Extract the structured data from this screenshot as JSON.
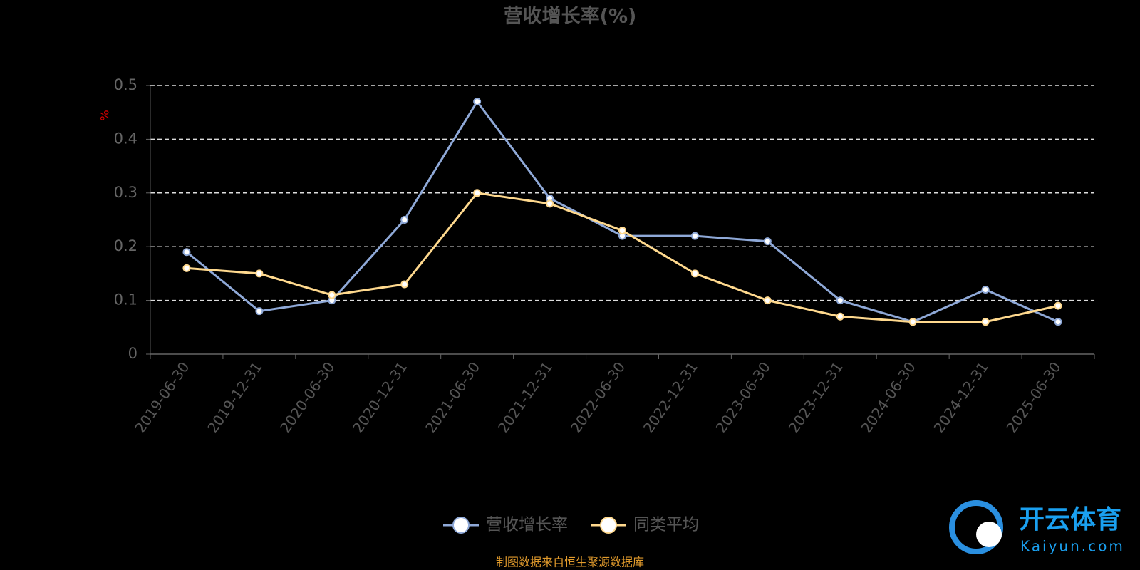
{
  "chart_data": {
    "type": "line",
    "title": "营收增长率(%)",
    "y_label": "%",
    "categories": [
      "2019-06-30",
      "2019-12-31",
      "2020-06-30",
      "2020-12-31",
      "2021-06-30",
      "2021-12-31",
      "2022-06-30",
      "2022-12-31",
      "2023-06-30",
      "2023-12-31",
      "2024-06-30",
      "2024-12-31",
      "2025-06-30"
    ],
    "series": [
      {
        "name": "营收增长率",
        "color": "#8fa9d8",
        "values": [
          0.19,
          0.08,
          0.1,
          0.25,
          0.47,
          0.29,
          0.22,
          0.22,
          0.21,
          0.1,
          0.06,
          0.12,
          0.06
        ]
      },
      {
        "name": "同类平均",
        "color": "#ffd98e",
        "values": [
          0.16,
          0.15,
          0.11,
          0.13,
          0.3,
          0.28,
          0.23,
          0.15,
          0.1,
          0.07,
          0.06,
          0.06,
          0.09
        ]
      }
    ],
    "ylim": [
      0,
      0.5
    ],
    "yticks": [
      0,
      0.1,
      0.2,
      0.3,
      0.4,
      0.5
    ],
    "grid": true,
    "source": "制图数据来自恒生聚源数据库"
  },
  "watermark": {
    "name": "开云体育",
    "site": "Kaiyun.com"
  }
}
